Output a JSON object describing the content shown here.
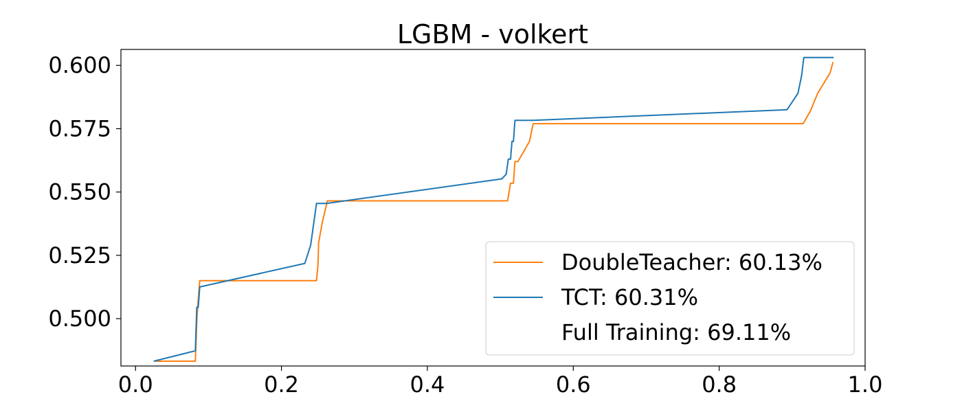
{
  "chart_data": {
    "type": "line",
    "title": "LGBM - volkert",
    "xlabel": "",
    "ylabel": "",
    "xlim": [
      -0.02,
      1.0
    ],
    "ylim": [
      0.4813,
      0.6063
    ],
    "x_ticks": [
      0.0,
      0.2,
      0.4,
      0.6,
      0.8,
      1.0
    ],
    "x_tick_labels": [
      "0.0",
      "0.2",
      "0.4",
      "0.6",
      "0.8",
      "1.0"
    ],
    "y_ticks": [
      0.5,
      0.525,
      0.55,
      0.575,
      0.6
    ],
    "y_tick_labels": [
      "0.500",
      "0.525",
      "0.550",
      "0.575",
      "0.600"
    ],
    "grid": false,
    "legend_position": "lower-right",
    "series": [
      {
        "name": "DoubleTeacher: 60.13%",
        "color": "#ff7f0e",
        "points": [
          [
            0.025,
            0.4832
          ],
          [
            0.082,
            0.4832
          ],
          [
            0.084,
            0.499
          ],
          [
            0.085,
            0.504
          ],
          [
            0.088,
            0.515
          ],
          [
            0.248,
            0.515
          ],
          [
            0.25,
            0.521
          ],
          [
            0.251,
            0.53
          ],
          [
            0.256,
            0.538
          ],
          [
            0.263,
            0.5465
          ],
          [
            0.51,
            0.5465
          ],
          [
            0.514,
            0.5535
          ],
          [
            0.518,
            0.5535
          ],
          [
            0.52,
            0.562
          ],
          [
            0.524,
            0.562
          ],
          [
            0.54,
            0.57
          ],
          [
            0.545,
            0.577
          ],
          [
            0.915,
            0.577
          ],
          [
            0.925,
            0.582
          ],
          [
            0.935,
            0.589
          ],
          [
            0.952,
            0.597
          ],
          [
            0.956,
            0.6013
          ]
        ]
      },
      {
        "name": "TCT: 60.31%",
        "color": "#1f77b4",
        "points": [
          [
            0.025,
            0.4832
          ],
          [
            0.082,
            0.4873
          ],
          [
            0.083,
            0.4965
          ],
          [
            0.084,
            0.5045
          ],
          [
            0.086,
            0.5045
          ],
          [
            0.088,
            0.5125
          ],
          [
            0.232,
            0.5218
          ],
          [
            0.24,
            0.529
          ],
          [
            0.248,
            0.5455
          ],
          [
            0.262,
            0.5455
          ],
          [
            0.502,
            0.5552
          ],
          [
            0.508,
            0.557
          ],
          [
            0.511,
            0.563
          ],
          [
            0.514,
            0.563
          ],
          [
            0.516,
            0.57
          ],
          [
            0.518,
            0.57
          ],
          [
            0.52,
            0.5783
          ],
          [
            0.545,
            0.5783
          ],
          [
            0.893,
            0.5825
          ],
          [
            0.908,
            0.589
          ],
          [
            0.913,
            0.596
          ],
          [
            0.916,
            0.6031
          ],
          [
            0.957,
            0.6031
          ]
        ]
      },
      {
        "name": "Full Training: 69.11%",
        "color": "#2ca02c",
        "points": []
      }
    ]
  }
}
